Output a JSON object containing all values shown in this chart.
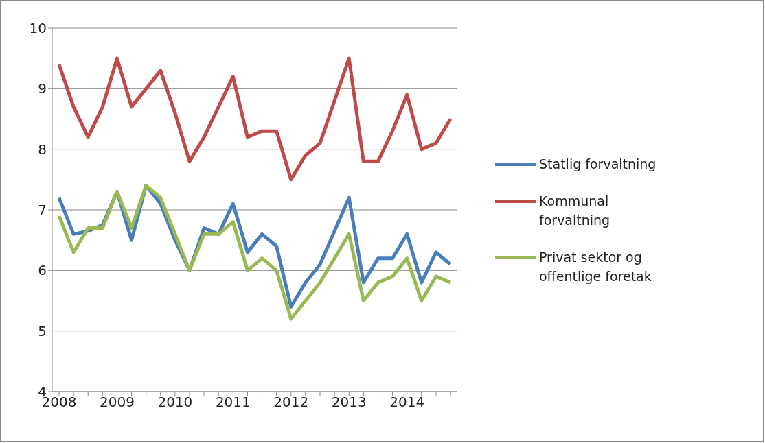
{
  "chart_data": {
    "type": "line",
    "categories": [
      "2008",
      null,
      null,
      null,
      "2009",
      null,
      null,
      null,
      "2010",
      null,
      null,
      null,
      "2011",
      null,
      null,
      null,
      "2012",
      null,
      null,
      null,
      "2013",
      null,
      null,
      null,
      "2014",
      null,
      null,
      null
    ],
    "series": [
      {
        "name": "Statlig forvaltning",
        "color": "#4a7ebb",
        "values": [
          7.2,
          6.6,
          6.65,
          6.75,
          7.3,
          6.5,
          7.4,
          7.1,
          6.5,
          6.0,
          6.7,
          6.6,
          7.1,
          6.3,
          6.6,
          6.4,
          5.4,
          5.8,
          6.1,
          6.65,
          7.2,
          5.8,
          6.2,
          6.2,
          6.6,
          5.8,
          6.3,
          6.1
        ]
      },
      {
        "name": "Kommunal forvaltning",
        "color": "#be4b48",
        "values": [
          9.4,
          8.7,
          8.2,
          8.7,
          9.5,
          8.7,
          9.0,
          9.3,
          8.6,
          7.8,
          8.2,
          8.7,
          9.2,
          8.2,
          8.3,
          8.3,
          7.5,
          7.9,
          8.1,
          8.8,
          9.5,
          7.8,
          7.8,
          8.3,
          8.9,
          8.0,
          8.1,
          8.5
        ]
      },
      {
        "name": "Privat sektor og offentlige foretak",
        "color": "#98b954",
        "values": [
          6.9,
          6.3,
          6.7,
          6.7,
          7.3,
          6.7,
          7.4,
          7.2,
          6.6,
          6.0,
          6.6,
          6.6,
          6.8,
          6.0,
          6.2,
          6.0,
          5.2,
          5.5,
          5.8,
          6.2,
          6.6,
          5.5,
          5.8,
          5.9,
          6.2,
          5.5,
          5.9,
          5.8
        ]
      }
    ],
    "ylim": [
      4,
      10
    ],
    "yticks": [
      4,
      5,
      6,
      7,
      8,
      9,
      10
    ],
    "grid": "y",
    "legend": "right",
    "marker": "none",
    "line_style": "solid"
  }
}
